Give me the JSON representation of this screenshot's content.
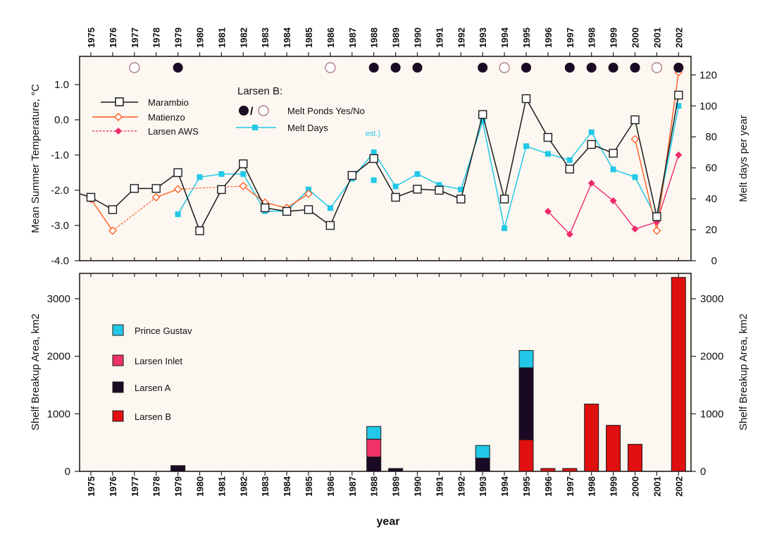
{
  "colors": {
    "marambio": "#1a1a1a",
    "matienzo": "#ff5a1f",
    "larsen_aws": "#ee2a6a",
    "melt_days": "#22c8e8",
    "melt_pond_yes": "#1b0a24",
    "melt_pond_no": "#b08090",
    "prince_gustav": "#22c8e8",
    "larsen_inlet": "#ee3366",
    "larsen_a": "#1b0a24",
    "larsen_b": "#e01010",
    "panel_bg": "#fcf7f0"
  },
  "chart_data": [
    {
      "type": "line",
      "years": [
        "1975",
        "1976",
        "1977",
        "1978",
        "1979",
        "1980",
        "1981",
        "1982",
        "1983",
        "1984",
        "1985",
        "1986",
        "1987",
        "1988",
        "1989",
        "1990",
        "1991",
        "1992",
        "1993",
        "1994",
        "1995",
        "1996",
        "1997",
        "1998",
        "1999",
        "2000",
        "2001",
        "2002"
      ],
      "ylabel": "Mean Summer Temperature, °C",
      "ylabel_right": "Melt days per year",
      "ylim": [
        -4.0,
        1.8
      ],
      "ylim_right": [
        0,
        132
      ],
      "yticks": [
        "1.0",
        "0.0",
        "-1.0",
        "-2.0",
        "-3.0",
        "-4.0"
      ],
      "yticks_right": [
        "120",
        "100",
        "80",
        "60",
        "40",
        "20",
        "0"
      ],
      "series": [
        {
          "name": "Marambio",
          "axis": "left",
          "values": [
            -2.2,
            -2.55,
            -1.95,
            -1.95,
            -1.5,
            -3.15,
            -1.98,
            -1.25,
            -2.5,
            -2.6,
            -2.55,
            -3.0,
            -1.58,
            -1.1,
            -2.2,
            -1.97,
            -2.0,
            -2.25,
            0.15,
            -2.25,
            0.6,
            -0.5,
            -1.4,
            -0.7,
            -0.95,
            0.0,
            -2.75,
            0.7
          ]
        },
        {
          "name": "Matienzo",
          "axis": "left",
          "values": [
            -2.25,
            -3.15,
            null,
            -2.2,
            -1.97,
            null,
            null,
            -1.88,
            -2.35,
            -2.5,
            -2.1,
            null,
            null,
            null,
            null,
            null,
            null,
            null,
            null,
            null,
            null,
            null,
            null,
            null,
            null,
            -0.55,
            -3.15,
            1.35
          ]
        },
        {
          "name": "Larsen AWS",
          "axis": "left",
          "values": [
            null,
            null,
            null,
            null,
            null,
            null,
            null,
            null,
            null,
            null,
            null,
            null,
            null,
            null,
            null,
            null,
            null,
            null,
            null,
            null,
            null,
            -2.6,
            -3.25,
            -1.8,
            -2.3,
            -3.1,
            -2.9,
            -1.0
          ]
        },
        {
          "name": "Melt Days",
          "axis": "right",
          "values": [
            null,
            null,
            null,
            null,
            30,
            54,
            56,
            56,
            32,
            32,
            46,
            34,
            53,
            70,
            48,
            56,
            49,
            46,
            90,
            21,
            74,
            69,
            65,
            83,
            59,
            54,
            27,
            100
          ]
        },
        {
          "name": "",
          "axis": "right",
          "values": [
            null,
            null,
            null,
            null,
            null,
            null,
            null,
            null,
            null,
            null,
            null,
            null,
            null,
            52,
            null,
            null,
            null,
            null,
            null,
            null,
            null,
            null,
            null,
            null,
            null,
            null,
            null,
            null
          ]
        }
      ],
      "melt_ponds": [
        {
          "year": "1977",
          "status": "no"
        },
        {
          "year": "1979",
          "status": "yes"
        },
        {
          "year": "1986",
          "status": "no"
        },
        {
          "year": "1988",
          "status": "yes"
        },
        {
          "year": "1989",
          "status": "yes"
        },
        {
          "year": "1990",
          "status": "yes"
        },
        {
          "year": "1993",
          "status": "yes"
        },
        {
          "year": "1994",
          "status": "no"
        },
        {
          "year": "1995",
          "status": "yes"
        },
        {
          "year": "1997",
          "status": "yes"
        },
        {
          "year": "1998",
          "status": "yes"
        },
        {
          "year": "1999",
          "status": "yes"
        },
        {
          "year": "2000",
          "status": "yes"
        },
        {
          "year": "2001",
          "status": "no"
        },
        {
          "year": "2002",
          "status": "yes"
        }
      ],
      "annotations": [
        {
          "text": "est.)",
          "year": "1988",
          "value": -0.38
        }
      ],
      "legend": {
        "larsen_b_title": "Larsen B:",
        "melt_ponds_label": "Melt Ponds Yes/No",
        "slash": "/"
      }
    },
    {
      "type": "bar",
      "stacked": true,
      "categories": [
        "1975",
        "1976",
        "1977",
        "1978",
        "1979",
        "1980",
        "1981",
        "1982",
        "1983",
        "1984",
        "1985",
        "1986",
        "1987",
        "1988",
        "1989",
        "1990",
        "1991",
        "1992",
        "1993",
        "1994",
        "1995",
        "1996",
        "1997",
        "1998",
        "1999",
        "2000",
        "2001",
        "2002"
      ],
      "xlabel": "year",
      "ylabel": "Shelf Breakup Area, km2",
      "ylabel_right": "Shelf Breakup Area, km2",
      "ylim": [
        0,
        3440
      ],
      "yticks": [
        "3000",
        "2000",
        "1000",
        "0"
      ],
      "series": [
        {
          "name": "Larsen B",
          "values": [
            0,
            0,
            0,
            0,
            0,
            0,
            0,
            0,
            0,
            0,
            0,
            0,
            0,
            0,
            0,
            0,
            0,
            0,
            0,
            0,
            550,
            50,
            50,
            1170,
            800,
            470,
            0,
            3370
          ]
        },
        {
          "name": "Larsen A",
          "values": [
            0,
            0,
            0,
            0,
            100,
            0,
            0,
            0,
            0,
            0,
            0,
            0,
            0,
            250,
            50,
            0,
            0,
            0,
            230,
            0,
            1250,
            0,
            0,
            0,
            0,
            0,
            0,
            0
          ]
        },
        {
          "name": "Larsen Inlet",
          "values": [
            0,
            0,
            0,
            0,
            0,
            0,
            0,
            0,
            0,
            0,
            0,
            0,
            0,
            310,
            0,
            0,
            0,
            0,
            0,
            0,
            0,
            0,
            0,
            0,
            0,
            0,
            0,
            0
          ]
        },
        {
          "name": "Prince Gustav",
          "values": [
            0,
            0,
            0,
            0,
            0,
            0,
            0,
            0,
            0,
            0,
            0,
            0,
            0,
            220,
            0,
            0,
            0,
            0,
            220,
            0,
            300,
            0,
            0,
            0,
            0,
            0,
            0,
            0
          ]
        }
      ],
      "legend_order": [
        "Prince Gustav",
        "Larsen Inlet",
        "Larsen A",
        "Larsen B"
      ]
    }
  ]
}
